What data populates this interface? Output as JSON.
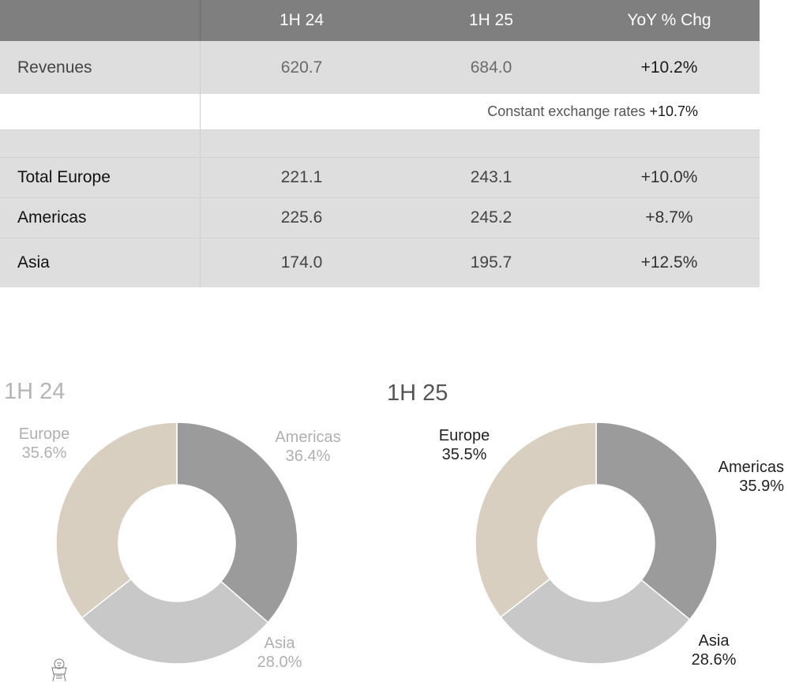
{
  "table": {
    "headers": [
      "",
      "1H 24",
      "1H 25",
      "YoY % Chg"
    ],
    "revenues": {
      "label": "Revenues",
      "h24": "620.7",
      "h25": "684.0",
      "yoy": "+10.2%"
    },
    "constant_fx": {
      "label": "Constant exchange rates",
      "value": "+10.7%"
    },
    "rows": [
      {
        "label": "Total Europe",
        "h24": "221.1",
        "h25": "243.1",
        "yoy": "+10.0%"
      },
      {
        "label": "Americas",
        "h24": "225.6",
        "h25": "245.2",
        "yoy": "+8.7%"
      },
      {
        "label": "Asia",
        "h24": "174.0",
        "h25": "195.7",
        "yoy": "+12.5%"
      }
    ]
  },
  "colors": {
    "header_bg": "#7f7f7f",
    "row_bg": "#dedede",
    "europe": "#d8cfc1",
    "americas": "#9b9b9b",
    "asia": "#c8c8c8"
  },
  "chart_data": [
    {
      "type": "pie",
      "title": "1H 24",
      "slices": [
        {
          "name": "Americas",
          "value": 36.4,
          "label": "36.4%"
        },
        {
          "name": "Asia",
          "value": 28.0,
          "label": "28.0%"
        },
        {
          "name": "Europe",
          "value": 35.6,
          "label": "35.6%"
        }
      ]
    },
    {
      "type": "pie",
      "title": "1H 25",
      "slices": [
        {
          "name": "Americas",
          "value": 35.9,
          "label": "35.9%"
        },
        {
          "name": "Asia",
          "value": 28.6,
          "label": "28.6%"
        },
        {
          "name": "Europe",
          "value": 35.5,
          "label": "35.5%"
        }
      ]
    }
  ]
}
